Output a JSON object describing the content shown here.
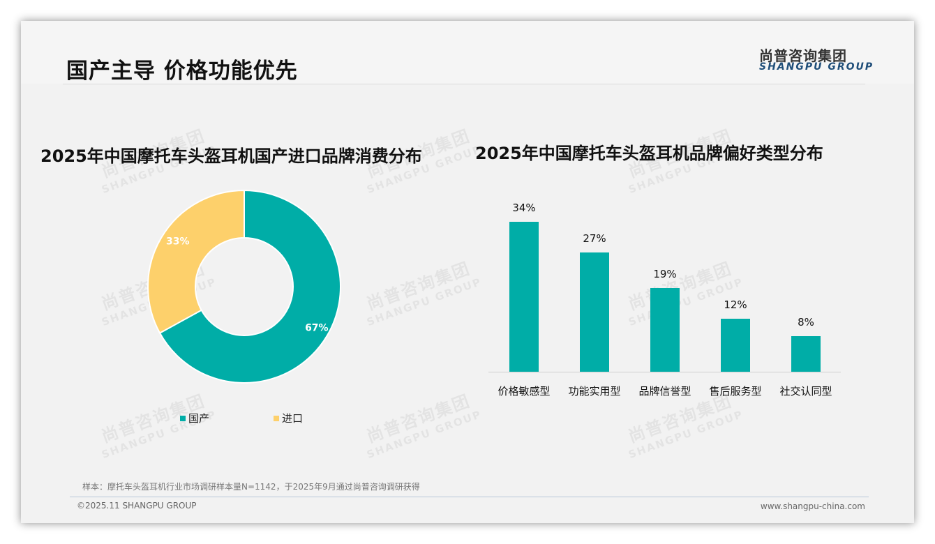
{
  "page": {
    "title": "国产主导 价格功能优先",
    "logo_cn": "尚普咨询集团",
    "logo_en": "SHANGPU GROUP",
    "note": "样本：摩托车头盔耳机行业市场调研样本量N=1142，于2025年9月通过尚普咨询调研获得",
    "copyright": "©2025.11 SHANGPU GROUP",
    "website": "www.shangpu-china.com",
    "watermark_cn": "尚普咨询集团",
    "watermark_en": "SHANGPU GROUP"
  },
  "colors": {
    "teal": "#00ada7",
    "yellow": "#fdd06b"
  },
  "chart_data": [
    {
      "type": "pie",
      "title": "2025年中国摩托车头盔耳机国产进口品牌消费分布",
      "categories": [
        "国产",
        "进口"
      ],
      "values": [
        67,
        33
      ],
      "labels": [
        "67%",
        "33%"
      ],
      "colors": [
        "#00ada7",
        "#fdd06b"
      ],
      "donut": true,
      "legend_position": "bottom"
    },
    {
      "type": "bar",
      "title": "2025年中国摩托车头盔耳机品牌偏好类型分布",
      "categories": [
        "价格敏感型",
        "功能实用型",
        "品牌信誉型",
        "售后服务型",
        "社交认同型"
      ],
      "values": [
        34,
        27,
        19,
        12,
        8
      ],
      "labels": [
        "34%",
        "27%",
        "19%",
        "12%",
        "8%"
      ],
      "xlabel": "",
      "ylabel": "",
      "grid": false,
      "color": "#00ada7"
    }
  ]
}
